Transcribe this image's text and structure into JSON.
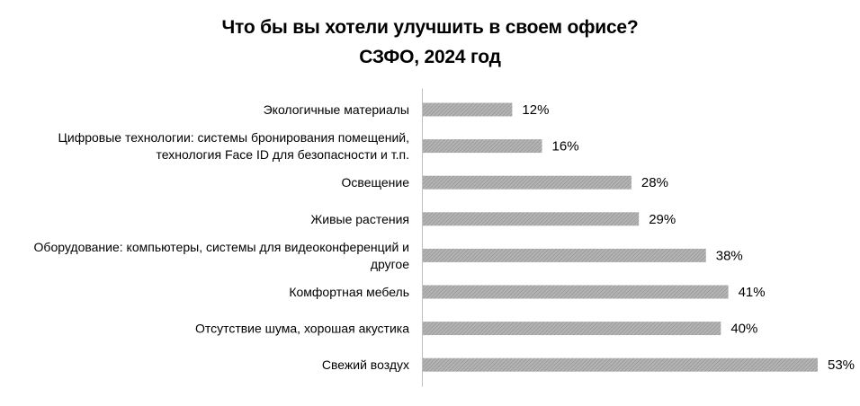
{
  "chart_data": {
    "type": "bar",
    "orientation": "horizontal",
    "title": "Что бы вы хотели улучшить в своем офисе?",
    "subtitle": "СЗФО, 2024 год",
    "categories": [
      [
        "Экологичные материалы"
      ],
      [
        "Цифровые технологии: системы бронирования помещений,",
        "технология Face ID для безопасности и т.п."
      ],
      [
        "Освещение"
      ],
      [
        "Живые растения"
      ],
      [
        "Оборудование: компьютеры, системы для видеоконференций и",
        "другое"
      ],
      [
        "Комфортная мебель"
      ],
      [
        "Отсутствие шума, хорошая акустика"
      ],
      [
        "Свежий воздух"
      ]
    ],
    "values": [
      12,
      16,
      28,
      29,
      38,
      41,
      40,
      53
    ],
    "value_labels": [
      "12%",
      "16%",
      "28%",
      "29%",
      "38%",
      "41%",
      "40%",
      "53%"
    ],
    "unit": "%",
    "xlim": [
      0,
      53
    ],
    "grid": false,
    "legend": "none",
    "bar_color": "#a6a6a6",
    "bar_texture": "diagonal-hatch"
  }
}
